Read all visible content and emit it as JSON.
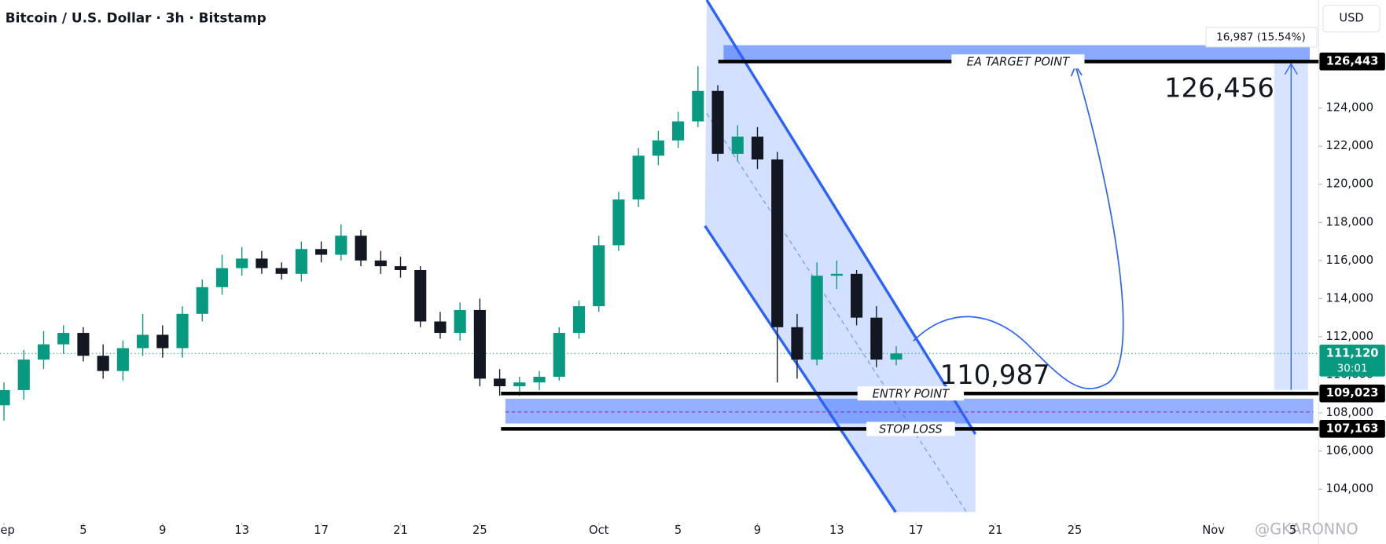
{
  "chart_data": {
    "type": "candlestick",
    "title": "Bitcoin / U.S. Dollar · 3h · Bitstamp",
    "currency": "USD",
    "x": [
      0,
      1,
      2,
      3,
      4,
      5,
      6,
      7,
      8,
      9,
      10,
      11,
      12,
      13,
      14,
      15,
      16,
      17,
      18,
      19,
      20,
      21,
      22,
      23,
      24,
      25,
      26,
      27,
      28,
      29,
      30,
      31,
      32,
      33,
      34,
      35,
      36,
      37,
      38,
      39,
      40,
      41,
      42,
      43,
      44,
      45
    ],
    "open": [
      108400,
      109200,
      110800,
      111600,
      112200,
      111000,
      110200,
      111400,
      112100,
      111400,
      113200,
      114600,
      115600,
      116100,
      115600,
      115300,
      116600,
      116300,
      117300,
      116000,
      115700,
      115500,
      112800,
      112200,
      113400,
      109800,
      109400,
      109600,
      109900,
      112200,
      113600,
      116800,
      119200,
      121500,
      122300,
      123300,
      124900,
      121600,
      122500,
      121300,
      112500,
      110800,
      115200,
      115300,
      113000,
      110800
    ],
    "high": [
      109600,
      111300,
      112300,
      112600,
      112500,
      111600,
      111800,
      113200,
      112600,
      113600,
      115000,
      116300,
      116700,
      116500,
      115900,
      117000,
      117000,
      117900,
      117600,
      116500,
      116200,
      115700,
      113300,
      113800,
      114000,
      110300,
      109900,
      110200,
      112500,
      113900,
      117300,
      119600,
      121900,
      122800,
      123800,
      126200,
      125200,
      123100,
      123000,
      121700,
      113200,
      115900,
      116000,
      115500,
      113600,
      111500
    ],
    "low": [
      107600,
      108700,
      110300,
      111100,
      110700,
      109800,
      109700,
      111000,
      110900,
      110900,
      112800,
      114200,
      115200,
      115300,
      115000,
      114900,
      115900,
      116000,
      115700,
      115300,
      115100,
      112500,
      111900,
      111800,
      109400,
      108900,
      108900,
      109200,
      109700,
      111900,
      113300,
      116500,
      118800,
      121000,
      121900,
      123000,
      121200,
      121200,
      120800,
      109600,
      109800,
      110500,
      114500,
      112600,
      110400,
      110500
    ],
    "close": [
      109200,
      110800,
      111600,
      112200,
      111000,
      110200,
      111400,
      112100,
      111400,
      113200,
      114600,
      115600,
      116100,
      115600,
      115300,
      116600,
      116300,
      117300,
      116000,
      115700,
      115500,
      112800,
      112200,
      113400,
      109800,
      109400,
      109600,
      109900,
      112200,
      113600,
      116800,
      119200,
      121500,
      122300,
      123300,
      124900,
      121600,
      122500,
      121300,
      112500,
      110800,
      115200,
      115300,
      113000,
      110800,
      111120
    ],
    "up_color": "#089981",
    "down_color": "#131722",
    "xlim": [
      -0.2,
      66.3
    ],
    "ylim": [
      102470,
      129670
    ],
    "xticks": [
      {
        "value": 0,
        "label": "Sep"
      },
      {
        "value": 4,
        "label": "5"
      },
      {
        "value": 8,
        "label": "9"
      },
      {
        "value": 12,
        "label": "13"
      },
      {
        "value": 16,
        "label": "17"
      },
      {
        "value": 20,
        "label": "21"
      },
      {
        "value": 24,
        "label": "25"
      },
      {
        "value": 30,
        "label": "Oct"
      },
      {
        "value": 34,
        "label": "5"
      },
      {
        "value": 38,
        "label": "9"
      },
      {
        "value": 42,
        "label": "13"
      },
      {
        "value": 46,
        "label": "17"
      },
      {
        "value": 50,
        "label": "21"
      },
      {
        "value": 54,
        "label": "25"
      },
      {
        "value": 61,
        "label": "Nov"
      },
      {
        "value": 65,
        "label": "5"
      }
    ],
    "yticks": [
      {
        "value": 104000,
        "label": "104,000"
      },
      {
        "value": 106000,
        "label": "106,000"
      },
      {
        "value": 108000,
        "label": "108,000"
      },
      {
        "value": 110000,
        "label": "110,000"
      },
      {
        "value": 112000,
        "label": "112,000"
      },
      {
        "value": 114000,
        "label": "114,000"
      },
      {
        "value": 116000,
        "label": "116,000"
      },
      {
        "value": 118000,
        "label": "118,000"
      },
      {
        "value": 120000,
        "label": "120,000"
      },
      {
        "value": 122000,
        "label": "122,000"
      },
      {
        "value": 124000,
        "label": "124,000"
      }
    ],
    "last_price": {
      "value": 111120,
      "label": "111,120",
      "countdown": "30:01"
    },
    "levels": [
      {
        "value": 126443,
        "label": "126,443",
        "name": "EA TARGET POINT"
      },
      {
        "value": 109023,
        "label": "109,023",
        "name": "ENTRY POINT"
      },
      {
        "value": 107163,
        "label": "107,163",
        "name": "STOP LOSS"
      }
    ],
    "measure_label": "16,987 (15.54%)",
    "annotations": [
      "126,456",
      "110,987"
    ],
    "watermark": "@GKARONNO"
  }
}
